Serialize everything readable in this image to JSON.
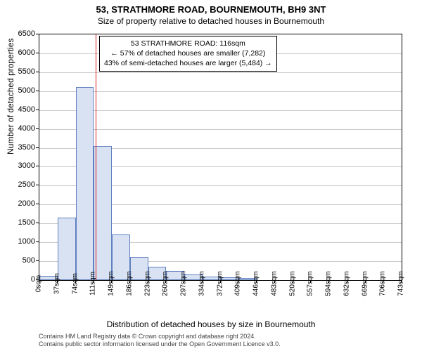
{
  "titles": {
    "main": "53, STRATHMORE ROAD, BOURNEMOUTH, BH9 3NT",
    "sub": "Size of property relative to detached houses in Bournemouth"
  },
  "axes": {
    "ylabel": "Number of detached properties",
    "xlabel": "Distribution of detached houses by size in Bournemouth",
    "ymin": 0,
    "ymax": 6500,
    "yticks": [
      0,
      500,
      1000,
      1500,
      2000,
      2500,
      3000,
      3500,
      4000,
      4500,
      5000,
      5500,
      6000,
      6500
    ],
    "xticks": [
      "0sqm",
      "37sqm",
      "74sqm",
      "111sqm",
      "149sqm",
      "186sqm",
      "223sqm",
      "260sqm",
      "297sqm",
      "334sqm",
      "372sqm",
      "409sqm",
      "446sqm",
      "483sqm",
      "520sqm",
      "557sqm",
      "594sqm",
      "632sqm",
      "669sqm",
      "706sqm",
      "743sqm"
    ],
    "label_fontsize": 12,
    "tick_fontsize": 10,
    "grid_color": "#cccccc"
  },
  "chart": {
    "type": "histogram",
    "bar_fill": "#d8e2f2",
    "bar_stroke": "#6080c0",
    "background": "#ffffff",
    "values": [
      120,
      1650,
      5100,
      3550,
      1200,
      620,
      350,
      240,
      150,
      100,
      80,
      60,
      0,
      0,
      0,
      0,
      0,
      0,
      0,
      0
    ]
  },
  "reference": {
    "value_sqm": 116,
    "line_color": "#d42020",
    "box": {
      "line1": "53 STRATHMORE ROAD: 116sqm",
      "line2": "← 57% of detached houses are smaller (7,282)",
      "line3": "43% of semi-detached houses are larger (5,484) →"
    }
  },
  "footer": {
    "line1": "Contains HM Land Registry data © Crown copyright and database right 2024.",
    "line2": "Contains public sector information licensed under the Open Government Licence v3.0."
  }
}
